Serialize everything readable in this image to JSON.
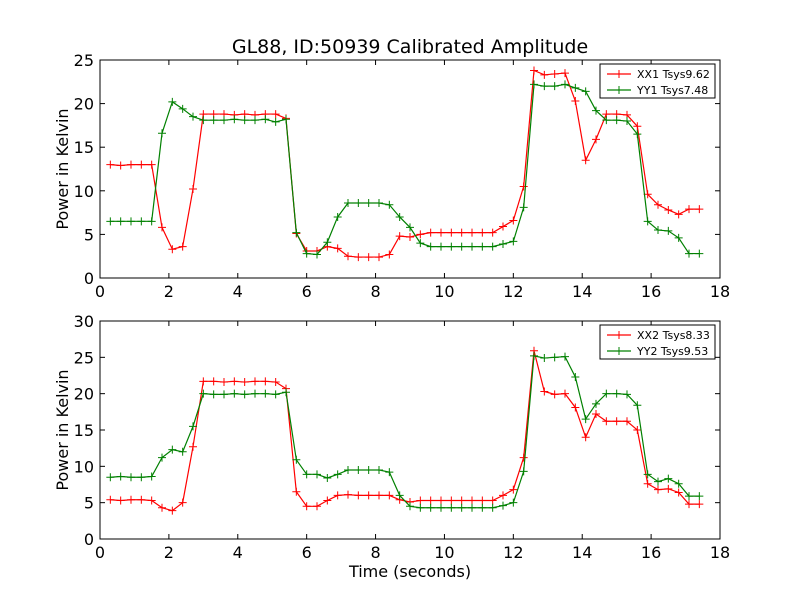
{
  "title": "GL88, ID:50939 Calibrated Amplitude",
  "chart_data": [
    {
      "type": "line",
      "xlabel": "",
      "ylabel": "Power in Kelvin",
      "xlim": [
        0,
        18
      ],
      "ylim": [
        0,
        25
      ],
      "xticks": [
        0,
        2,
        4,
        6,
        8,
        10,
        12,
        14,
        16,
        18
      ],
      "yticks": [
        0,
        5,
        10,
        15,
        20,
        25
      ],
      "grid": false,
      "legend_position": "top-right",
      "x": [
        0.3,
        0.6,
        0.9,
        1.2,
        1.5,
        1.8,
        2.1,
        2.4,
        2.7,
        3.0,
        3.3,
        3.6,
        3.9,
        4.2,
        4.5,
        4.8,
        5.1,
        5.4,
        5.7,
        6.0,
        6.3,
        6.6,
        6.9,
        7.2,
        7.5,
        7.8,
        8.1,
        8.4,
        8.7,
        9.0,
        9.3,
        9.6,
        9.9,
        10.2,
        10.5,
        10.8,
        11.1,
        11.4,
        11.7,
        12.0,
        12.3,
        12.6,
        12.9,
        13.2,
        13.5,
        13.8,
        14.1,
        14.4,
        14.7,
        15.0,
        15.3,
        15.6,
        15.9,
        16.2,
        16.5,
        16.8,
        17.1,
        17.4
      ],
      "series": [
        {
          "name": "XX1 Tsys9.62",
          "color": "#ff0000",
          "values": [
            13.0,
            12.9,
            13.0,
            13.0,
            13.0,
            5.8,
            3.3,
            3.6,
            10.2,
            18.8,
            18.8,
            18.8,
            18.7,
            18.8,
            18.7,
            18.8,
            18.8,
            18.3,
            5.1,
            3.1,
            3.1,
            3.6,
            3.4,
            2.5,
            2.4,
            2.4,
            2.4,
            2.7,
            4.8,
            4.7,
            5.0,
            5.2,
            5.2,
            5.2,
            5.2,
            5.2,
            5.2,
            5.2,
            5.9,
            6.6,
            10.5,
            23.8,
            23.3,
            23.4,
            23.5,
            20.3,
            13.5,
            15.9,
            18.8,
            18.8,
            18.7,
            17.4,
            9.6,
            8.4,
            7.8,
            7.3,
            7.9,
            7.9
          ]
        },
        {
          "name": "YY1 Tsys7.48",
          "color": "#008000",
          "values": [
            6.5,
            6.5,
            6.5,
            6.5,
            6.5,
            16.6,
            20.2,
            19.4,
            18.5,
            18.1,
            18.1,
            18.1,
            18.2,
            18.1,
            18.1,
            18.2,
            17.9,
            18.2,
            5.2,
            2.8,
            2.7,
            4.1,
            7.0,
            8.6,
            8.6,
            8.6,
            8.6,
            8.4,
            7.0,
            5.8,
            4.0,
            3.6,
            3.6,
            3.6,
            3.6,
            3.6,
            3.6,
            3.6,
            3.9,
            4.2,
            8.1,
            22.2,
            22.0,
            22.0,
            22.2,
            21.8,
            21.4,
            19.2,
            18.1,
            18.1,
            18.0,
            16.5,
            6.5,
            5.5,
            5.4,
            4.6,
            2.8,
            2.8
          ]
        }
      ]
    },
    {
      "type": "line",
      "xlabel": "Time (seconds)",
      "ylabel": "Power in Kelvin",
      "xlim": [
        0,
        18
      ],
      "ylim": [
        0,
        30
      ],
      "xticks": [
        0,
        2,
        4,
        6,
        8,
        10,
        12,
        14,
        16,
        18
      ],
      "yticks": [
        0,
        5,
        10,
        15,
        20,
        25,
        30
      ],
      "grid": false,
      "legend_position": "top-right",
      "x": [
        0.3,
        0.6,
        0.9,
        1.2,
        1.5,
        1.8,
        2.1,
        2.4,
        2.7,
        3.0,
        3.3,
        3.6,
        3.9,
        4.2,
        4.5,
        4.8,
        5.1,
        5.4,
        5.7,
        6.0,
        6.3,
        6.6,
        6.9,
        7.2,
        7.5,
        7.8,
        8.1,
        8.4,
        8.7,
        9.0,
        9.3,
        9.6,
        9.9,
        10.2,
        10.5,
        10.8,
        11.1,
        11.4,
        11.7,
        12.0,
        12.3,
        12.6,
        12.9,
        13.2,
        13.5,
        13.8,
        14.1,
        14.4,
        14.7,
        15.0,
        15.3,
        15.6,
        15.9,
        16.2,
        16.5,
        16.8,
        17.1,
        17.4
      ],
      "series": [
        {
          "name": "XX2 Tsys8.33",
          "color": "#ff0000",
          "values": [
            5.4,
            5.3,
            5.4,
            5.4,
            5.3,
            4.3,
            3.9,
            5.0,
            12.7,
            21.7,
            21.7,
            21.6,
            21.7,
            21.6,
            21.7,
            21.7,
            21.6,
            20.7,
            6.5,
            4.5,
            4.5,
            5.3,
            6.0,
            6.1,
            6.0,
            6.0,
            6.0,
            6.0,
            5.4,
            5.1,
            5.3,
            5.3,
            5.3,
            5.3,
            5.3,
            5.3,
            5.3,
            5.3,
            6.0,
            6.8,
            11.2,
            25.9,
            20.3,
            19.9,
            20.0,
            18.1,
            14.0,
            17.2,
            16.2,
            16.2,
            16.2,
            15.0,
            7.6,
            6.8,
            6.9,
            6.4,
            4.8,
            4.8
          ]
        },
        {
          "name": "YY2 Tsys9.53",
          "color": "#008000",
          "values": [
            8.5,
            8.6,
            8.5,
            8.5,
            8.6,
            11.2,
            12.3,
            12.0,
            15.5,
            20.0,
            19.9,
            19.9,
            20.0,
            19.9,
            20.0,
            20.0,
            19.9,
            20.2,
            10.9,
            8.9,
            8.9,
            8.4,
            8.9,
            9.5,
            9.5,
            9.5,
            9.5,
            9.2,
            6.0,
            4.5,
            4.3,
            4.3,
            4.3,
            4.3,
            4.3,
            4.3,
            4.3,
            4.3,
            4.6,
            5.0,
            9.3,
            25.2,
            24.9,
            25.0,
            25.1,
            22.3,
            16.5,
            18.6,
            20.0,
            20.0,
            19.9,
            18.4,
            8.9,
            7.9,
            8.3,
            7.6,
            5.9,
            5.9
          ]
        }
      ]
    }
  ]
}
